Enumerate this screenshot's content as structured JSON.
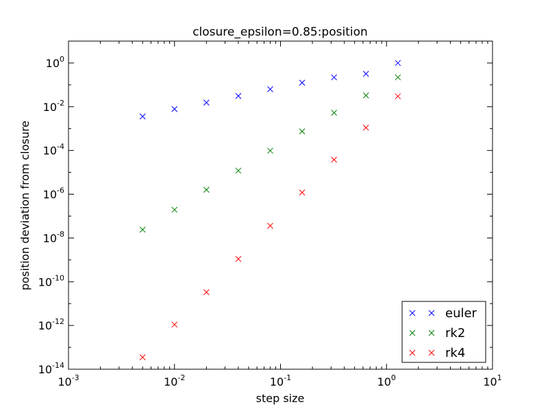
{
  "chart_data": {
    "type": "scatter",
    "title": "closure_epsilon=0.85:position",
    "xlabel": "step size",
    "ylabel": "position deviation from closure",
    "xscale": "log",
    "yscale": "log",
    "xlim": [
      0.001,
      10
    ],
    "ylim": [
      1e-14,
      10
    ],
    "x_ticks": [
      {
        "base": "10",
        "exp": "-3"
      },
      {
        "base": "10",
        "exp": "-2"
      },
      {
        "base": "10",
        "exp": "-1"
      },
      {
        "base": "10",
        "exp": "0"
      },
      {
        "base": "10",
        "exp": "1"
      }
    ],
    "y_ticks": [
      {
        "base": "10",
        "exp": "-14"
      },
      {
        "base": "10",
        "exp": "-12"
      },
      {
        "base": "10",
        "exp": "-10"
      },
      {
        "base": "10",
        "exp": "-8"
      },
      {
        "base": "10",
        "exp": "-6"
      },
      {
        "base": "10",
        "exp": "-4"
      },
      {
        "base": "10",
        "exp": "-2"
      },
      {
        "base": "10",
        "exp": "0"
      }
    ],
    "grid": false,
    "legend_position": "lower-right",
    "marker": "x",
    "x": [
      0.005,
      0.01,
      0.02,
      0.04,
      0.08,
      0.16,
      0.32,
      0.64,
      1.28
    ],
    "series": [
      {
        "name": "euler",
        "color": "#0000ff",
        "values": [
          0.0036,
          0.0078,
          0.0155,
          0.031,
          0.063,
          0.125,
          0.22,
          0.32,
          1.0
        ]
      },
      {
        "name": "rk2",
        "color": "#008000",
        "values": [
          2.4e-08,
          1.95e-07,
          1.6e-06,
          1.2e-05,
          9.8e-05,
          0.00075,
          0.0053,
          0.033,
          0.22
        ]
      },
      {
        "name": "rk4",
        "color": "#ff0000",
        "values": [
          3.5e-14,
          1.1e-12,
          3.3e-11,
          1.1e-09,
          3.6e-08,
          1.2e-06,
          3.8e-05,
          0.0011,
          0.03
        ]
      }
    ]
  }
}
